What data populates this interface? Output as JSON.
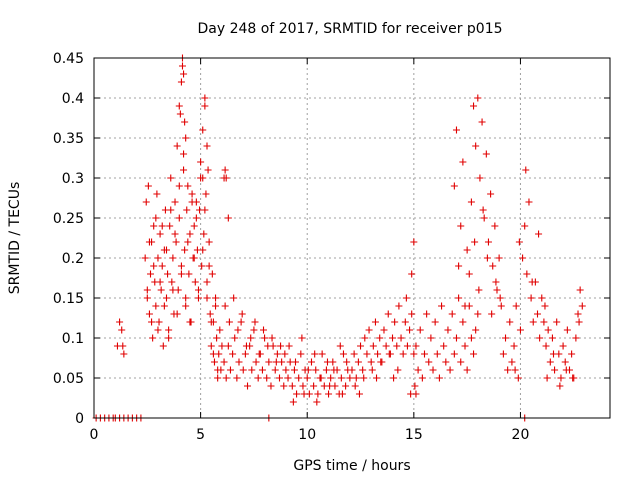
{
  "chart_data": {
    "type": "scatter",
    "title": "Day 248 of 2017, SRMTID for receiver p015",
    "xlabel": "GPS time / hours",
    "ylabel": "SRMTID / TECUs",
    "xlim": [
      0,
      24.2
    ],
    "ylim": [
      0,
      0.45
    ],
    "x_ticks": [
      "0",
      "5",
      "10",
      "15",
      "20"
    ],
    "x_tick_values": [
      0,
      5,
      10,
      15,
      20
    ],
    "y_ticks": [
      "0",
      "0.05",
      "0.1",
      "0.15",
      "0.2",
      "0.25",
      "0.3",
      "0.35",
      "0.4",
      "0.45"
    ],
    "y_tick_values": [
      0,
      0.05,
      0.1,
      0.15,
      0.2,
      0.25,
      0.3,
      0.35,
      0.4,
      0.45
    ],
    "grid": true,
    "legend": "none",
    "series": [
      {
        "name": "SRMTID",
        "color": "#e00000",
        "marker": "plus",
        "x": [
          0.1,
          0.3,
          0.5,
          0.7,
          0.9,
          1.0,
          1.2,
          1.4,
          1.6,
          1.8,
          2.0,
          2.2,
          1.1,
          1.2,
          1.3,
          1.35,
          1.4,
          2.4,
          2.45,
          2.5,
          2.55,
          2.6,
          2.65,
          2.7,
          2.75,
          2.8,
          2.85,
          2.9,
          2.95,
          3.0,
          3.05,
          3.1,
          3.15,
          3.2,
          3.25,
          3.3,
          3.35,
          3.4,
          3.45,
          3.5,
          3.55,
          3.6,
          3.65,
          3.7,
          3.75,
          3.8,
          3.85,
          3.9,
          3.95,
          4.0,
          4.05,
          4.1,
          4.15,
          4.2,
          4.25,
          4.3,
          4.35,
          4.4,
          4.45,
          4.5,
          4.55,
          4.6,
          4.65,
          4.7,
          4.75,
          4.8,
          4.85,
          4.9,
          4.95,
          5.0,
          5.05,
          5.1,
          5.15,
          5.2,
          5.25,
          5.3,
          5.35,
          5.4,
          5.45,
          5.5,
          5.55,
          5.6,
          5.65,
          5.7,
          5.75,
          5.8,
          5.85,
          5.9,
          5.95,
          6.0,
          2.5,
          2.6,
          2.7,
          2.8,
          2.9,
          3.0,
          3.1,
          3.2,
          3.3,
          3.4,
          3.5,
          3.6,
          3.7,
          3.8,
          3.9,
          4.0,
          4.1,
          4.2,
          4.3,
          4.4,
          4.5,
          4.6,
          4.7,
          4.8,
          4.9,
          5.0,
          5.1,
          5.2,
          5.3,
          5.4,
          5.5,
          5.6,
          5.7,
          5.8,
          4.0,
          4.1,
          4.15,
          4.2,
          4.25,
          4.3,
          5.1,
          5.2,
          5.3,
          6.2,
          6.3,
          6.1,
          6.2,
          6.3,
          6.4,
          6.5,
          6.6,
          6.7,
          6.8,
          6.9,
          7.0,
          7.1,
          7.2,
          7.3,
          7.4,
          7.5,
          7.6,
          7.7,
          7.8,
          7.9,
          8.0,
          8.1,
          8.2,
          8.3,
          8.4,
          8.5,
          8.6,
          8.7,
          8.8,
          8.9,
          9.0,
          6.15,
          6.35,
          6.55,
          6.75,
          6.95,
          7.15,
          7.35,
          7.55,
          7.75,
          7.95,
          8.15,
          8.35,
          8.55,
          8.75,
          8.95,
          9.1,
          9.2,
          9.3,
          9.4,
          9.5,
          9.6,
          9.7,
          9.8,
          9.9,
          10.0,
          10.1,
          10.2,
          10.3,
          10.4,
          10.5,
          10.6,
          10.7,
          10.8,
          10.9,
          11.0,
          11.1,
          11.2,
          11.3,
          11.4,
          11.5,
          11.6,
          11.7,
          11.8,
          11.9,
          12.0,
          9.15,
          9.45,
          9.75,
          10.05,
          10.35,
          10.65,
          10.95,
          11.25,
          11.55,
          11.85,
          9.35,
          9.85,
          10.45,
          11.05,
          11.65,
          12.1,
          12.2,
          12.3,
          12.4,
          12.5,
          12.6,
          12.7,
          12.8,
          12.9,
          13.0,
          13.1,
          13.2,
          13.3,
          13.4,
          13.5,
          13.6,
          13.7,
          13.8,
          13.9,
          14.0,
          14.1,
          14.2,
          14.3,
          14.4,
          14.5,
          14.6,
          14.7,
          14.8,
          14.9,
          15.0,
          12.25,
          12.65,
          13.05,
          13.45,
          13.85,
          14.25,
          14.65,
          15.05,
          12.45,
          13.25,
          14.05,
          14.85,
          15.1,
          15.2,
          15.3,
          15.4,
          15.5,
          15.6,
          15.7,
          15.8,
          15.9,
          16.0,
          16.1,
          16.2,
          16.3,
          16.4,
          16.5,
          16.6,
          16.7,
          16.8,
          16.9,
          17.0,
          17.1,
          17.2,
          17.3,
          17.4,
          17.5,
          17.6,
          17.7,
          17.8,
          17.9,
          18.0,
          16.9,
          17.0,
          17.2,
          17.3,
          17.5,
          17.7,
          17.8,
          17.9,
          18.0,
          18.1,
          18.2,
          18.3,
          18.4,
          18.5,
          18.6,
          18.7,
          18.8,
          18.9,
          19.0,
          19.1,
          17.1,
          17.4,
          17.6,
          17.85,
          18.05,
          18.25,
          18.45,
          18.65,
          18.85,
          19.05,
          19.2,
          19.3,
          19.4,
          19.5,
          19.6,
          19.7,
          19.8,
          19.9,
          20.0,
          20.1,
          20.2,
          20.3,
          20.4,
          20.5,
          20.6,
          20.7,
          20.8,
          20.9,
          21.0,
          21.1,
          19.95,
          20.25,
          20.55,
          20.85,
          21.15,
          19.75,
          21.2,
          21.3,
          21.4,
          21.5,
          21.6,
          21.7,
          21.8,
          21.9,
          22.0,
          22.1,
          22.2,
          22.3,
          22.4,
          22.5,
          22.6,
          22.7,
          22.8,
          22.9,
          21.25,
          21.55,
          21.85,
          22.15,
          22.45,
          22.75,
          15.0,
          14.9,
          15.1,
          6.1,
          6.15,
          8.2,
          20.2
        ],
        "y": [
          0.0,
          0.0,
          0.0,
          0.0,
          0.0,
          0.0,
          0.0,
          0.0,
          0.0,
          0.0,
          0.0,
          0.0,
          0.09,
          0.12,
          0.11,
          0.09,
          0.08,
          0.2,
          0.27,
          0.16,
          0.29,
          0.13,
          0.18,
          0.22,
          0.1,
          0.24,
          0.17,
          0.14,
          0.28,
          0.2,
          0.12,
          0.23,
          0.16,
          0.19,
          0.09,
          0.21,
          0.26,
          0.15,
          0.18,
          0.11,
          0.24,
          0.3,
          0.17,
          0.2,
          0.13,
          0.27,
          0.22,
          0.34,
          0.16,
          0.25,
          0.38,
          0.19,
          0.44,
          0.31,
          0.21,
          0.14,
          0.26,
          0.29,
          0.18,
          0.23,
          0.12,
          0.28,
          0.2,
          0.24,
          0.17,
          0.27,
          0.21,
          0.15,
          0.26,
          0.32,
          0.19,
          0.36,
          0.23,
          0.4,
          0.28,
          0.17,
          0.31,
          0.22,
          0.13,
          0.09,
          0.18,
          0.12,
          0.07,
          0.15,
          0.1,
          0.05,
          0.08,
          0.11,
          0.06,
          0.09,
          0.15,
          0.22,
          0.12,
          0.19,
          0.25,
          0.11,
          0.17,
          0.24,
          0.14,
          0.21,
          0.1,
          0.26,
          0.16,
          0.23,
          0.13,
          0.29,
          0.18,
          0.33,
          0.15,
          0.22,
          0.12,
          0.27,
          0.2,
          0.25,
          0.16,
          0.3,
          0.21,
          0.26,
          0.15,
          0.19,
          0.12,
          0.08,
          0.14,
          0.06,
          0.39,
          0.42,
          0.45,
          0.43,
          0.37,
          0.35,
          0.3,
          0.39,
          0.34,
          0.3,
          0.25,
          0.07,
          0.05,
          0.09,
          0.06,
          0.08,
          0.1,
          0.05,
          0.07,
          0.12,
          0.06,
          0.08,
          0.04,
          0.09,
          0.06,
          0.11,
          0.07,
          0.05,
          0.08,
          0.06,
          0.1,
          0.05,
          0.07,
          0.04,
          0.09,
          0.06,
          0.08,
          0.05,
          0.07,
          0.04,
          0.06,
          0.14,
          0.12,
          0.15,
          0.11,
          0.13,
          0.09,
          0.1,
          0.12,
          0.08,
          0.11,
          0.09,
          0.1,
          0.07,
          0.09,
          0.08,
          0.05,
          0.07,
          0.04,
          0.06,
          0.03,
          0.05,
          0.08,
          0.04,
          0.06,
          0.05,
          0.03,
          0.07,
          0.04,
          0.06,
          0.03,
          0.05,
          0.08,
          0.04,
          0.06,
          0.03,
          0.05,
          0.07,
          0.04,
          0.06,
          0.03,
          0.05,
          0.08,
          0.04,
          0.06,
          0.05,
          0.09,
          0.07,
          0.1,
          0.06,
          0.08,
          0.05,
          0.07,
          0.06,
          0.09,
          0.07,
          0.02,
          0.03,
          0.02,
          0.04,
          0.03,
          0.06,
          0.08,
          0.05,
          0.07,
          0.09,
          0.06,
          0.1,
          0.08,
          0.11,
          0.07,
          0.09,
          0.12,
          0.08,
          0.1,
          0.07,
          0.11,
          0.09,
          0.13,
          0.08,
          0.1,
          0.12,
          0.09,
          0.14,
          0.1,
          0.08,
          0.12,
          0.09,
          0.11,
          0.13,
          0.08,
          0.04,
          0.05,
          0.06,
          0.07,
          0.08,
          0.06,
          0.15,
          0.04,
          0.03,
          0.05,
          0.05,
          0.03,
          0.09,
          0.06,
          0.11,
          0.05,
          0.08,
          0.13,
          0.07,
          0.1,
          0.06,
          0.12,
          0.08,
          0.05,
          0.14,
          0.09,
          0.07,
          0.11,
          0.06,
          0.13,
          0.08,
          0.1,
          0.15,
          0.07,
          0.12,
          0.09,
          0.06,
          0.14,
          0.1,
          0.08,
          0.11,
          0.13,
          0.29,
          0.36,
          0.24,
          0.32,
          0.21,
          0.27,
          0.39,
          0.34,
          0.4,
          0.3,
          0.37,
          0.25,
          0.33,
          0.22,
          0.28,
          0.19,
          0.24,
          0.16,
          0.2,
          0.14,
          0.19,
          0.14,
          0.18,
          0.22,
          0.16,
          0.26,
          0.2,
          0.13,
          0.17,
          0.15,
          0.08,
          0.1,
          0.06,
          0.12,
          0.07,
          0.09,
          0.14,
          0.05,
          0.11,
          0.2,
          0.24,
          0.18,
          0.27,
          0.15,
          0.12,
          0.17,
          0.13,
          0.1,
          0.15,
          0.12,
          0.22,
          0.31,
          0.17,
          0.23,
          0.14,
          0.06,
          0.09,
          0.11,
          0.07,
          0.1,
          0.06,
          0.12,
          0.08,
          0.05,
          0.09,
          0.07,
          0.11,
          0.06,
          0.08,
          0.05,
          0.1,
          0.13,
          0.16,
          0.14,
          0.05,
          0.08,
          0.04,
          0.06,
          0.05,
          0.12,
          0.22,
          0.18,
          0.03,
          0.3,
          0.31,
          0.0,
          0.0
        ]
      }
    ]
  }
}
